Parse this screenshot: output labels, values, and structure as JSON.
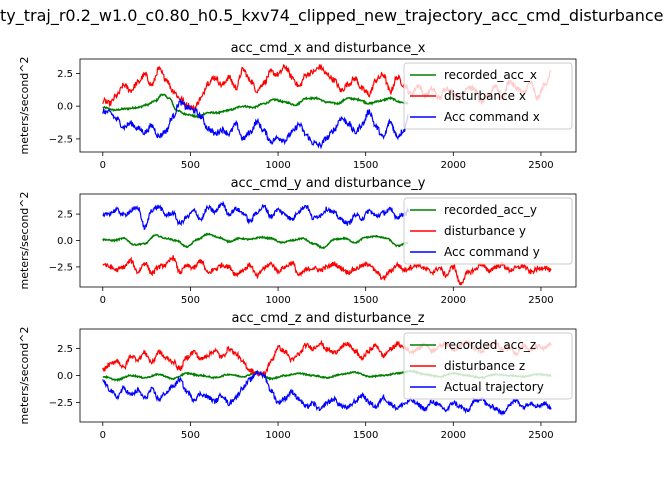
{
  "figure_title": "ty_traj_r0.2_w1.0_c0.80_h0.5_kxv74_clipped_new_trajectory_acc_cmd_disturbance",
  "colors": {
    "green": "#008000",
    "red": "#ff0000",
    "blue": "#0000ff"
  },
  "chart_data": [
    {
      "type": "line",
      "title": "acc_cmd_x and disturbance_x",
      "xlabel": "",
      "ylabel": "meters/second^2",
      "xlim": [
        -130,
        2700
      ],
      "ylim": [
        -3.5,
        3.6
      ],
      "xticks": [
        0,
        500,
        1000,
        1500,
        2000,
        2500
      ],
      "yticks": [
        2.5,
        0.0,
        -2.5
      ],
      "ytick_labels": [
        "2.5",
        "0.0",
        "−2.5"
      ],
      "grid": false,
      "legend_position": "top-right",
      "series": [
        {
          "name": "recorded_acc_x",
          "color": "#008000",
          "x": [
            0,
            70,
            130,
            200,
            250,
            300,
            340,
            380,
            420,
            470,
            540,
            600,
            660,
            720,
            800,
            860,
            920,
            980,
            1040,
            1100,
            1160,
            1220,
            1280,
            1340,
            1400,
            1460,
            1520,
            1580,
            1640,
            1700,
            1745
          ],
          "values": [
            -0.1,
            -0.3,
            -0.2,
            -0.1,
            0.1,
            0.4,
            0.9,
            0.6,
            -0.3,
            -0.6,
            -0.8,
            -0.5,
            -0.5,
            -0.3,
            0.0,
            -0.1,
            0.2,
            0.5,
            0.3,
            0.1,
            0.6,
            0.6,
            0.3,
            0.2,
            0.6,
            0.5,
            0.2,
            0.4,
            0.6,
            0.3,
            0.2
          ]
        },
        {
          "name": "disturbance x",
          "color": "#ff0000",
          "x": [
            0,
            40,
            80,
            120,
            160,
            200,
            240,
            280,
            320,
            360,
            400,
            440,
            480,
            520,
            560,
            600,
            640,
            680,
            720,
            760,
            800,
            840,
            880,
            920,
            960,
            1000,
            1040,
            1080,
            1120,
            1160,
            1200,
            1240,
            1280,
            1320,
            1360,
            1400,
            1440,
            1480,
            1520,
            1560,
            1600,
            1640,
            1680,
            1720,
            1760,
            1800,
            1840,
            1880,
            1920,
            1960,
            2000,
            2040,
            2080,
            2120,
            2160,
            2200,
            2240,
            2280,
            2320,
            2360,
            2400,
            2440,
            2480,
            2520,
            2560
          ],
          "values": [
            0.4,
            0.2,
            0.8,
            1.6,
            1.2,
            1.8,
            2.4,
            1.6,
            2.8,
            2.1,
            1.2,
            0.6,
            0.1,
            -0.2,
            0.6,
            1.8,
            2.2,
            1.6,
            2.2,
            1.4,
            2.8,
            2.0,
            1.2,
            1.8,
            2.6,
            2.4,
            3.0,
            2.2,
            1.5,
            2.4,
            2.6,
            3.0,
            2.4,
            2.0,
            1.2,
            1.7,
            2.1,
            1.3,
            0.9,
            2.0,
            2.4,
            1.1,
            2.2,
            1.6,
            0.9,
            1.6,
            0.8,
            1.3,
            0.6,
            1.4,
            1.0,
            0.6,
            1.5,
            1.3,
            0.3,
            0.8,
            1.6,
            0.6,
            1.9,
            1.4,
            1.0,
            1.8,
            0.6,
            1.6,
            2.6
          ]
        },
        {
          "name": "Acc command x",
          "color": "#0000ff",
          "x": [
            0,
            40,
            80,
            120,
            160,
            200,
            240,
            280,
            320,
            360,
            400,
            440,
            480,
            520,
            560,
            600,
            640,
            680,
            720,
            760,
            800,
            840,
            880,
            920,
            960,
            1000,
            1040,
            1080,
            1120,
            1160,
            1200,
            1240,
            1280,
            1320,
            1360,
            1400,
            1440,
            1480,
            1520,
            1560,
            1600,
            1640,
            1680,
            1720,
            1745
          ],
          "values": [
            -0.4,
            -0.5,
            -1.0,
            -1.6,
            -1.3,
            -1.7,
            -2.0,
            -1.5,
            -2.3,
            -1.9,
            -0.8,
            0.3,
            -0.1,
            -0.3,
            -0.8,
            -1.7,
            -2.1,
            -1.8,
            -2.1,
            -1.4,
            -2.5,
            -2.0,
            -1.2,
            -1.9,
            -2.7,
            -2.4,
            -2.6,
            -2.0,
            -1.4,
            -2.2,
            -2.8,
            -3.0,
            -2.4,
            -1.8,
            -0.9,
            -1.3,
            -2.0,
            -1.4,
            -0.4,
            -1.6,
            -2.4,
            -1.2,
            -2.3,
            -1.8,
            -0.5
          ]
        }
      ]
    },
    {
      "type": "line",
      "title": "acc_cmd_y and disturbance_y",
      "xlabel": "",
      "ylabel": "meters/second^2",
      "xlim": [
        -130,
        2700
      ],
      "ylim": [
        -4.4,
        4.4
      ],
      "xticks": [
        0,
        500,
        1000,
        1500,
        2000,
        2500
      ],
      "yticks": [
        2.5,
        0.0,
        -2.5
      ],
      "ytick_labels": [
        "2.5",
        "0.0",
        "−2.5"
      ],
      "grid": false,
      "legend_position": "top-right",
      "series": [
        {
          "name": "recorded_acc_y",
          "color": "#008000",
          "x": [
            0,
            60,
            120,
            180,
            240,
            300,
            360,
            420,
            480,
            540,
            600,
            660,
            720,
            780,
            840,
            900,
            960,
            1020,
            1080,
            1140,
            1200,
            1260,
            1320,
            1380,
            1440,
            1500,
            1560,
            1620,
            1680,
            1745
          ],
          "values": [
            0.1,
            0.0,
            0.2,
            -0.4,
            -0.3,
            0.5,
            0.2,
            0.0,
            -0.6,
            0.1,
            0.6,
            0.3,
            -0.1,
            0.2,
            0.1,
            0.3,
            0.2,
            -0.2,
            0.0,
            0.2,
            -0.3,
            -0.7,
            0.1,
            0.2,
            -0.2,
            0.3,
            0.4,
            0.2,
            -0.5,
            -0.2
          ]
        },
        {
          "name": "disturbance y",
          "color": "#ff0000",
          "x": [
            0,
            40,
            80,
            120,
            160,
            200,
            240,
            280,
            320,
            360,
            400,
            440,
            480,
            520,
            560,
            600,
            640,
            680,
            720,
            760,
            800,
            840,
            880,
            920,
            960,
            1000,
            1040,
            1080,
            1120,
            1160,
            1200,
            1240,
            1280,
            1320,
            1360,
            1400,
            1440,
            1480,
            1520,
            1560,
            1600,
            1640,
            1680,
            1720,
            1760,
            1800,
            1840,
            1880,
            1920,
            1960,
            2000,
            2040,
            2080,
            2120,
            2160,
            2200,
            2240,
            2280,
            2320,
            2360,
            2400,
            2440,
            2480,
            2520,
            2560
          ],
          "values": [
            -2.2,
            -2.5,
            -2.8,
            -2.5,
            -1.9,
            -3.0,
            -2.1,
            -3.1,
            -2.5,
            -2.3,
            -1.6,
            -3.0,
            -2.4,
            -2.6,
            -1.9,
            -3.1,
            -2.7,
            -2.3,
            -2.5,
            -3.2,
            -2.8,
            -2.3,
            -3.4,
            -2.6,
            -2.2,
            -2.9,
            -2.5,
            -2.1,
            -3.3,
            -2.8,
            -2.6,
            -2.8,
            -2.5,
            -2.2,
            -2.6,
            -3.0,
            -2.7,
            -2.4,
            -2.2,
            -3.0,
            -3.6,
            -2.9,
            -2.3,
            -2.8,
            -2.5,
            -2.3,
            -2.7,
            -3.0,
            -2.6,
            -3.3,
            -2.4,
            -4.1,
            -3.1,
            -2.8,
            -2.2,
            -2.9,
            -2.5,
            -2.3,
            -2.8,
            -2.6,
            -2.4,
            -3.0,
            -2.7,
            -2.5,
            -2.9
          ]
        },
        {
          "name": "Acc command y",
          "color": "#0000ff",
          "x": [
            0,
            40,
            80,
            120,
            160,
            200,
            240,
            280,
            320,
            360,
            400,
            440,
            480,
            520,
            560,
            600,
            640,
            680,
            720,
            760,
            800,
            840,
            880,
            920,
            960,
            1000,
            1040,
            1080,
            1120,
            1160,
            1200,
            1240,
            1280,
            1320,
            1360,
            1400,
            1440,
            1480,
            1520,
            1560,
            1600,
            1640,
            1680,
            1720,
            1745
          ],
          "values": [
            2.3,
            2.6,
            2.9,
            2.4,
            2.8,
            3.1,
            1.2,
            2.9,
            3.2,
            2.4,
            2.6,
            1.6,
            2.2,
            2.8,
            2.0,
            3.1,
            2.7,
            3.5,
            2.5,
            3.0,
            2.6,
            1.8,
            2.7,
            3.2,
            2.3,
            2.9,
            2.5,
            2.0,
            2.8,
            3.3,
            2.1,
            2.4,
            3.0,
            2.6,
            2.0,
            1.6,
            2.4,
            2.1,
            2.8,
            2.3,
            2.6,
            2.9,
            2.2,
            2.5,
            2.8
          ]
        }
      ]
    },
    {
      "type": "line",
      "title": "acc_cmd_z and disturbance_z",
      "xlabel": "",
      "ylabel": "meters/second^2",
      "xlim": [
        -130,
        2700
      ],
      "ylim": [
        -4.3,
        4.3
      ],
      "xticks": [
        0,
        500,
        1000,
        1500,
        2000,
        2500
      ],
      "yticks": [
        2.5,
        0.0,
        -2.5
      ],
      "ytick_labels": [
        "2.5",
        "0.0",
        "−2.5"
      ],
      "grid": false,
      "legend_position": "top-right",
      "series": [
        {
          "name": "recorded_acc_z",
          "color": "#008000",
          "x": [
            0,
            80,
            160,
            240,
            320,
            400,
            480,
            560,
            640,
            720,
            800,
            880,
            960,
            1040,
            1120,
            1200,
            1280,
            1360,
            1440,
            1520,
            1600,
            1680,
            1760,
            1840,
            1920,
            2000,
            2080,
            2160,
            2240,
            2320,
            2400,
            2480,
            2560
          ],
          "values": [
            -0.1,
            -0.4,
            0.0,
            -0.2,
            0.1,
            -0.3,
            0.2,
            0.0,
            -0.2,
            0.1,
            -0.1,
            0.3,
            -0.3,
            0.0,
            0.2,
            0.0,
            -0.2,
            0.1,
            0.3,
            -0.1,
            0.0,
            0.2,
            0.4,
            0.1,
            -0.1,
            0.2,
            0.0,
            -0.2,
            0.1,
            0.0,
            -0.1,
            0.1,
            0.0
          ]
        },
        {
          "name": "disturbance z",
          "color": "#ff0000",
          "x": [
            0,
            40,
            80,
            120,
            160,
            200,
            240,
            280,
            320,
            360,
            400,
            440,
            480,
            520,
            560,
            600,
            640,
            680,
            720,
            760,
            800,
            840,
            880,
            920,
            960,
            1000,
            1040,
            1080,
            1120,
            1160,
            1200,
            1240,
            1280,
            1320,
            1360,
            1400,
            1440,
            1480,
            1520,
            1560,
            1600,
            1640,
            1680,
            1720,
            1760,
            1800,
            1840,
            1880,
            1920,
            1960,
            2000,
            2040,
            2080,
            2120,
            2160,
            2200,
            2240,
            2280,
            2320,
            2360,
            2400,
            2440,
            2480,
            2520,
            2560
          ],
          "values": [
            0.5,
            1.0,
            1.4,
            0.7,
            1.8,
            1.5,
            2.1,
            1.2,
            2.2,
            1.6,
            1.3,
            0.6,
            1.7,
            2.2,
            1.5,
            1.9,
            2.3,
            1.7,
            2.5,
            2.0,
            1.2,
            0.5,
            0.2,
            0.1,
            1.3,
            2.6,
            2.2,
            1.4,
            2.0,
            2.8,
            2.5,
            3.0,
            2.4,
            2.1,
            2.6,
            2.9,
            2.2,
            1.6,
            2.3,
            2.8,
            1.8,
            2.4,
            2.9,
            2.6,
            2.2,
            2.5,
            2.9,
            2.3,
            2.7,
            3.0,
            2.4,
            2.8,
            3.1,
            2.5,
            2.2,
            2.7,
            3.0,
            2.4,
            2.6,
            2.1,
            2.8,
            2.3,
            2.7,
            2.5,
            2.9
          ]
        },
        {
          "name": "Actual trajectory",
          "color": "#0000ff",
          "x": [
            0,
            40,
            80,
            120,
            160,
            200,
            240,
            280,
            320,
            360,
            400,
            440,
            480,
            520,
            560,
            600,
            640,
            680,
            720,
            760,
            800,
            840,
            880,
            920,
            960,
            1000,
            1040,
            1080,
            1120,
            1160,
            1200,
            1240,
            1280,
            1320,
            1360,
            1400,
            1440,
            1480,
            1520,
            1560,
            1600,
            1640,
            1680,
            1720,
            1760,
            1800,
            1840,
            1880,
            1920,
            1960,
            2000,
            2040,
            2080,
            2120,
            2160,
            2200,
            2240,
            2280,
            2320,
            2360,
            2400,
            2440,
            2480,
            2520,
            2560
          ],
          "values": [
            -0.5,
            -1.3,
            -2.0,
            -1.2,
            -1.8,
            -1.4,
            -2.1,
            -1.3,
            -2.2,
            -1.6,
            -1.0,
            -0.4,
            -1.5,
            -2.2,
            -1.7,
            -2.0,
            -2.4,
            -1.8,
            -2.6,
            -2.0,
            -1.1,
            -0.4,
            0.3,
            0.0,
            -1.4,
            -2.5,
            -2.1,
            -1.5,
            -2.2,
            -2.9,
            -2.6,
            -3.2,
            -2.5,
            -2.2,
            -2.8,
            -3.0,
            -2.4,
            -1.8,
            -2.5,
            -2.9,
            -2.0,
            -2.6,
            -3.0,
            -2.6,
            -2.3,
            -2.7,
            -3.1,
            -2.4,
            -2.8,
            -3.2,
            -2.5,
            -2.9,
            -3.3,
            -2.4,
            -2.1,
            -2.8,
            -3.0,
            -3.5,
            -2.7,
            -2.3,
            -2.9,
            -2.5,
            -2.8,
            -2.6,
            -3.0
          ]
        }
      ]
    }
  ]
}
